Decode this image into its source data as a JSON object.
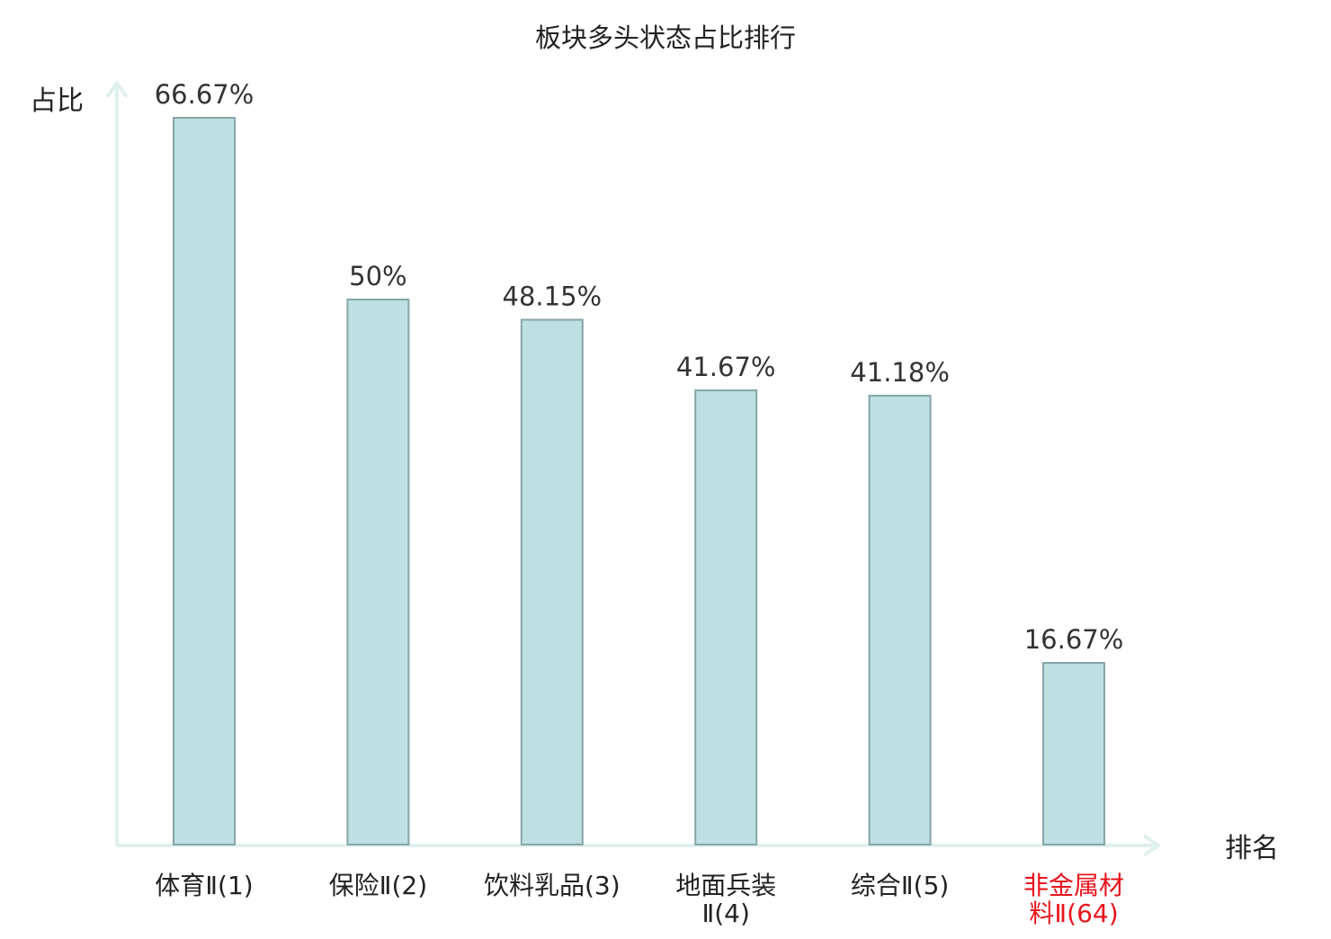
{
  "chart_data": {
    "type": "bar",
    "title": "板块多头状态占比排行",
    "ylabel": "占比",
    "xlabel": "排名",
    "ylim": [
      0,
      66.67
    ],
    "grid": false,
    "categories": [
      {
        "lines": [
          "体育Ⅱ(1)"
        ],
        "highlight": false
      },
      {
        "lines": [
          "保险Ⅱ(2)"
        ],
        "highlight": false
      },
      {
        "lines": [
          "饮料乳品(3)"
        ],
        "highlight": false
      },
      {
        "lines": [
          "地面兵装",
          "Ⅱ(4)"
        ],
        "highlight": false
      },
      {
        "lines": [
          "综合Ⅱ(5)"
        ],
        "highlight": false
      },
      {
        "lines": [
          "非金属材",
          "料Ⅱ(64)"
        ],
        "highlight": true
      }
    ],
    "values": [
      66.67,
      50,
      48.15,
      41.67,
      41.18,
      16.67
    ],
    "value_labels": [
      "66.67%",
      "50%",
      "48.15%",
      "41.67%",
      "41.18%",
      "16.67%"
    ]
  },
  "colors": {
    "bar_fill": "#bde0e3",
    "bar_stroke": "#86a6a8",
    "axis": "#dff0ee",
    "text": "#333333",
    "highlight_text": "#e8141d"
  }
}
